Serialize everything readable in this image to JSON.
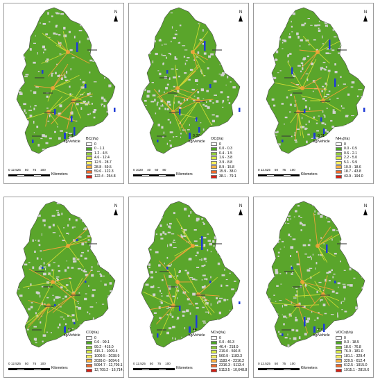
{
  "north_label": "N",
  "unit_label": "kg/Vehicle",
  "scale_unit": "Kilometers",
  "panels": [
    {
      "id": "bc",
      "legend_title": "BC(t/a)",
      "legend_items": [
        "0",
        "0 - 1.1",
        "1.2 - 4.5",
        "4.6 - 12.4",
        "12.5 - 28.7",
        "28.8 - 59.5",
        "59.6 - 122.3",
        "122.4 - 254.8"
      ],
      "ref_value": "1.3",
      "scale_ticks": [
        "0 12.525",
        "50",
        "75",
        "100"
      ]
    },
    {
      "id": "oc",
      "legend_title": "OC(t/a)",
      "legend_items": [
        "0",
        "0.0 - 0.3",
        "0.4 - 1.5",
        "1.6 - 3.8",
        "3.9 - 8.8",
        "8.9 - 15.8",
        "15.9 - 38.0",
        "38.1 - 79.1"
      ],
      "ref_value": "0.37",
      "scale_ticks": [
        "0 1020",
        "40",
        "60",
        "80"
      ]
    },
    {
      "id": "nh3",
      "legend_title": "NH₃(t/a)",
      "legend_items": [
        "0",
        "0.0 - 0.5",
        "0.6 - 2.1",
        "2.2 - 5.0",
        "5.1 - 9.9",
        "10.0 - 18.6",
        "18.7 - 43.8",
        "43.9 - 194.0"
      ],
      "ref_value": "0.31",
      "scale_ticks": [
        "0 12.525",
        "50",
        "75",
        "100"
      ]
    },
    {
      "id": "co",
      "legend_title": "CO(t/a)",
      "legend_items": [
        "0",
        "0.0 - 99.1",
        "99.2 - 415.0",
        "415.1 - 1009.4",
        "1009.5 - 2038.9",
        "2039.0 - 5094.6",
        "5094.7 - 12,709.1",
        "12,709.2 - 16,714.7"
      ],
      "ref_value": "63",
      "scale_ticks": [
        "0 12.525",
        "50",
        "75",
        "100"
      ]
    },
    {
      "id": "nox",
      "legend_title": "NOx(t/a)",
      "legend_items": [
        "0",
        "0.0 - 46.3",
        "46.4 - 218.9",
        "219.0 - 560.8",
        "560.9 - 1183.3",
        "1183.4 - 2316.2",
        "2316.3 - 5113.4",
        "5113.5 - 10,648.8"
      ],
      "ref_value": "44",
      "scale_ticks": [
        "0 12.525",
        "50",
        "75",
        "100"
      ]
    },
    {
      "id": "vocs",
      "legend_title": "VOCs(t/a)",
      "legend_items": [
        "0",
        "0.0 - 18.5",
        "18.6 - 76.8",
        "76.9 - 181.0",
        "181.1 - 329.4",
        "329.5 - 612.4",
        "612.5 - 1915.0",
        "1915.1 - 2819.6"
      ],
      "ref_value": "7.7",
      "scale_ticks": [
        "0 12.525",
        "50",
        "75",
        "100"
      ]
    }
  ],
  "legend_colors": [
    "#ffffff",
    "#4ea626",
    "#8fcc3a",
    "#d7ea45",
    "#fff25c",
    "#f7b140",
    "#ef6a2a",
    "#d81e12"
  ],
  "map_colors": {
    "land": "#5aa52b",
    "gap": "#d2d2d2",
    "road": "#c9d935",
    "hot": "#f2a23a",
    "border": "#4a4a4a"
  },
  "bar_color": "#1f3bd6"
}
